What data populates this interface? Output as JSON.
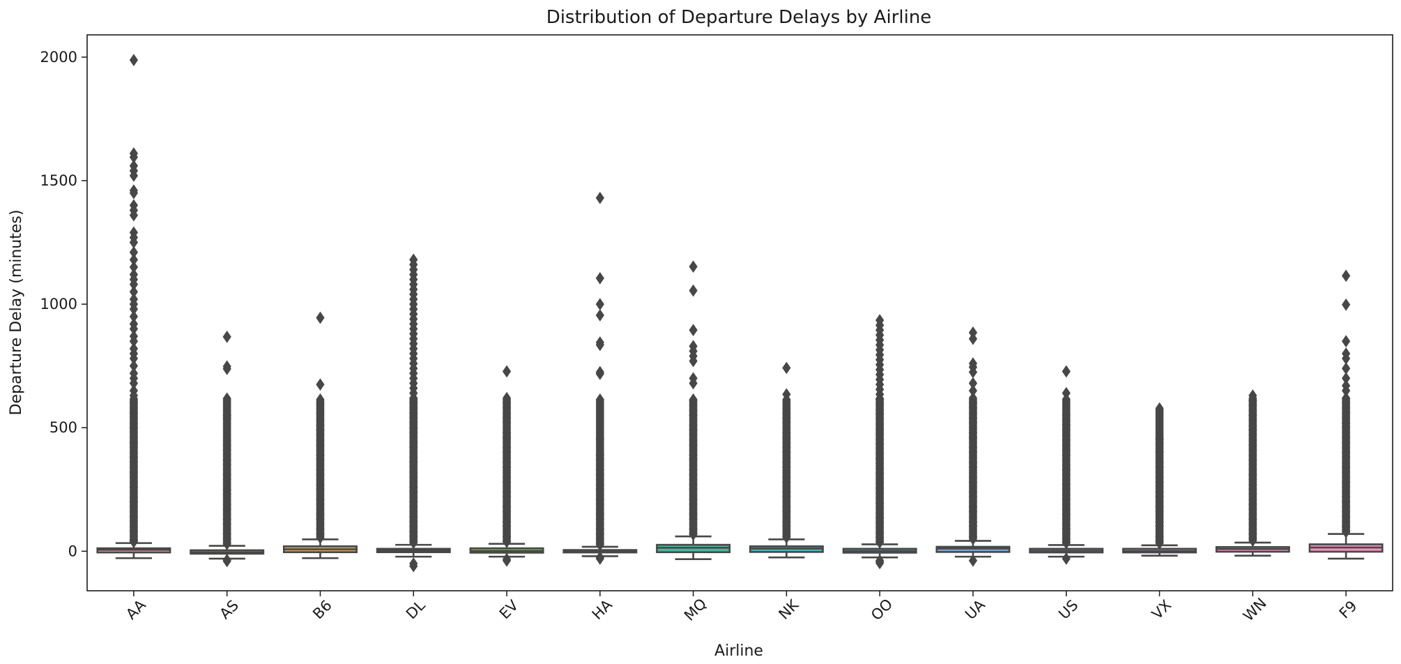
{
  "chart_data": {
    "type": "box",
    "title": "Distribution of Departure Delays by Airline",
    "xlabel": "Airline",
    "ylabel": "Departure Delay (minutes)",
    "ylim": [
      -160,
      2090
    ],
    "yticks": [
      0,
      500,
      1000,
      1500,
      2000
    ],
    "grid": false,
    "categories": [
      "AA",
      "AS",
      "B6",
      "DL",
      "EV",
      "HA",
      "MQ",
      "NK",
      "OO",
      "UA",
      "US",
      "VX",
      "WN",
      "F9"
    ],
    "boxes": [
      {
        "category": "AA",
        "color": "#e88fa0",
        "whisker_low": -28,
        "q1": -5,
        "median": 6,
        "q3": 12,
        "whisker_high": 33,
        "outlier_max": 1988,
        "outliers": [
          1988,
          1610,
          1595,
          1560,
          1540,
          1520,
          1460,
          1450,
          1400,
          1380,
          1360,
          1290,
          1270,
          1250,
          1210,
          1180,
          1150,
          1120,
          1100,
          1080,
          1050,
          1020,
          1000,
          980,
          950,
          920,
          900,
          870,
          850,
          820,
          800,
          780,
          750,
          720,
          700,
          680,
          650,
          630,
          600,
          580,
          560,
          540,
          520,
          500,
          480,
          460,
          440,
          420,
          400,
          380,
          360,
          340,
          320,
          300,
          280,
          260,
          240,
          220,
          200,
          180,
          160,
          140,
          120,
          100,
          80,
          60,
          45,
          38
        ]
      },
      {
        "category": "AS",
        "color": "#d9a88f",
        "whisker_low": -30,
        "q1": -10,
        "median": -4,
        "q3": 4,
        "whisker_high": 22,
        "outlier_max": 868,
        "outliers": [
          868,
          748,
          738,
          550,
          538,
          450,
          430,
          410,
          390,
          370,
          350,
          330,
          310,
          290,
          270,
          250,
          230,
          210,
          190,
          170,
          150,
          130,
          110,
          90,
          70,
          50,
          30,
          -40,
          -35
        ]
      },
      {
        "category": "B6",
        "color": "#c9a562",
        "whisker_low": -28,
        "q1": -4,
        "median": 8,
        "q3": 20,
        "whisker_high": 48,
        "outlier_max": 945,
        "outliers": [
          945,
          675,
          595,
          560,
          530,
          510,
          490,
          470,
          450,
          430,
          410,
          390,
          370,
          350,
          330,
          310,
          290,
          270,
          250,
          230,
          210,
          190,
          170,
          150,
          130,
          110,
          90,
          70,
          55
        ]
      },
      {
        "category": "DL",
        "color": "#a5ad5e",
        "whisker_low": -22,
        "q1": -4,
        "median": 3,
        "q3": 10,
        "whisker_high": 26,
        "outlier_max": 1180,
        "outliers": [
          1180,
          1160,
          1140,
          1120,
          1100,
          1080,
          1060,
          1040,
          1020,
          1000,
          980,
          960,
          940,
          920,
          900,
          880,
          860,
          840,
          820,
          800,
          780,
          760,
          740,
          720,
          700,
          680,
          660,
          640,
          620,
          600,
          580,
          560,
          540,
          520,
          500,
          480,
          460,
          440,
          420,
          400,
          380,
          360,
          340,
          320,
          300,
          280,
          260,
          240,
          220,
          200,
          180,
          160,
          140,
          120,
          100,
          80,
          60,
          40,
          -60,
          -50
        ]
      },
      {
        "category": "EV",
        "color": "#86b262",
        "whisker_low": -22,
        "q1": -6,
        "median": 1,
        "q3": 12,
        "whisker_high": 30,
        "outlier_max": 728,
        "outliers": [
          728,
          620,
          600,
          580,
          560,
          540,
          520,
          500,
          480,
          460,
          440,
          420,
          400,
          380,
          360,
          340,
          320,
          300,
          280,
          260,
          240,
          220,
          200,
          180,
          160,
          140,
          120,
          100,
          80,
          60,
          40,
          -38,
          -32
        ]
      },
      {
        "category": "HA",
        "color": "#5cb38a",
        "whisker_low": -20,
        "q1": -5,
        "median": -1,
        "q3": 5,
        "whisker_high": 18,
        "outlier_max": 1430,
        "outliers": [
          1430,
          1105,
          1000,
          955,
          845,
          835,
          725,
          718,
          455,
          390,
          370,
          350,
          330,
          310,
          290,
          270,
          250,
          230,
          210,
          190,
          170,
          150,
          130,
          110,
          90,
          70,
          50,
          30,
          -30,
          -25
        ]
      },
      {
        "category": "MQ",
        "color": "#4fb49f",
        "whisker_low": -32,
        "q1": -4,
        "median": 14,
        "q3": 26,
        "whisker_high": 60,
        "outlier_max": 1152,
        "outliers": [
          1152,
          1055,
          895,
          830,
          810,
          790,
          770,
          700,
          680,
          610,
          590,
          570,
          550,
          530,
          510,
          490,
          470,
          450,
          430,
          410,
          390,
          370,
          350,
          330,
          310,
          290,
          270,
          250,
          230,
          210,
          190,
          170,
          150,
          130,
          110,
          90,
          70
        ]
      },
      {
        "category": "NK",
        "color": "#52b0b4",
        "whisker_low": -25,
        "q1": -3,
        "median": 11,
        "q3": 20,
        "whisker_high": 48,
        "outlier_max": 742,
        "outliers": [
          742,
          635,
          560,
          540,
          520,
          500,
          480,
          460,
          440,
          420,
          400,
          380,
          360,
          340,
          320,
          300,
          280,
          260,
          240,
          220,
          200,
          180,
          160,
          140,
          120,
          100,
          80,
          60
        ]
      },
      {
        "category": "OO",
        "color": "#57abc9",
        "whisker_low": -25,
        "q1": -6,
        "median": 1,
        "q3": 10,
        "whisker_high": 28,
        "outlier_max": 935,
        "outliers": [
          935,
          915,
          895,
          875,
          855,
          835,
          815,
          795,
          775,
          755,
          735,
          715,
          695,
          675,
          655,
          635,
          615,
          595,
          575,
          555,
          535,
          515,
          495,
          475,
          455,
          435,
          415,
          395,
          375,
          355,
          335,
          315,
          295,
          275,
          255,
          235,
          215,
          195,
          175,
          155,
          135,
          115,
          95,
          75,
          55,
          38,
          -48,
          -42,
          -38
        ]
      },
      {
        "category": "UA",
        "color": "#7aa4d8",
        "whisker_low": -22,
        "q1": -3,
        "median": 11,
        "q3": 18,
        "whisker_high": 42,
        "outlier_max": 885,
        "outliers": [
          885,
          860,
          760,
          745,
          725,
          680,
          650,
          620,
          600,
          580,
          560,
          540,
          520,
          500,
          480,
          460,
          440,
          420,
          400,
          380,
          360,
          340,
          320,
          300,
          280,
          260,
          240,
          220,
          200,
          180,
          160,
          140,
          120,
          100,
          80,
          60,
          -38
        ]
      },
      {
        "category": "US",
        "color": "#a59bd6",
        "whisker_low": -22,
        "q1": -5,
        "median": 2,
        "q3": 10,
        "whisker_high": 25,
        "outlier_max": 728,
        "outliers": [
          728,
          640,
          550,
          530,
          510,
          490,
          470,
          450,
          430,
          410,
          390,
          370,
          350,
          330,
          310,
          290,
          270,
          250,
          230,
          210,
          190,
          170,
          150,
          130,
          110,
          90,
          70,
          50,
          35,
          -30
        ]
      },
      {
        "category": "VX",
        "color": "#c894d6",
        "whisker_low": -18,
        "q1": -5,
        "median": 1,
        "q3": 10,
        "whisker_high": 24,
        "outlier_max": 578,
        "outliers": [
          578,
          455,
          435,
          400,
          380,
          360,
          340,
          320,
          300,
          280,
          260,
          240,
          220,
          200,
          180,
          160,
          140,
          120,
          100,
          80,
          60,
          40
        ]
      },
      {
        "category": "WN",
        "color": "#de8fc6",
        "whisker_low": -18,
        "q1": -2,
        "median": 9,
        "q3": 17,
        "whisker_high": 35,
        "outlier_max": 630,
        "outliers": [
          630,
          610,
          590,
          570,
          550,
          530,
          510,
          490,
          470,
          450,
          430,
          410,
          390,
          370,
          350,
          330,
          310,
          290,
          270,
          250,
          230,
          210,
          190,
          170,
          150,
          130,
          110,
          90,
          70,
          50
        ]
      },
      {
        "category": "F9",
        "color": "#ee8fb8",
        "whisker_low": -30,
        "q1": -2,
        "median": 15,
        "q3": 28,
        "whisker_high": 70,
        "outlier_max": 1115,
        "outliers": [
          1115,
          998,
          850,
          800,
          780,
          740,
          700,
          670,
          650,
          620,
          600,
          580,
          560,
          540,
          520,
          500,
          480,
          460,
          440,
          420,
          400,
          380,
          360,
          340,
          320,
          300,
          280,
          260,
          240,
          220,
          200,
          180,
          160,
          140,
          120,
          100,
          80
        ]
      }
    ]
  }
}
